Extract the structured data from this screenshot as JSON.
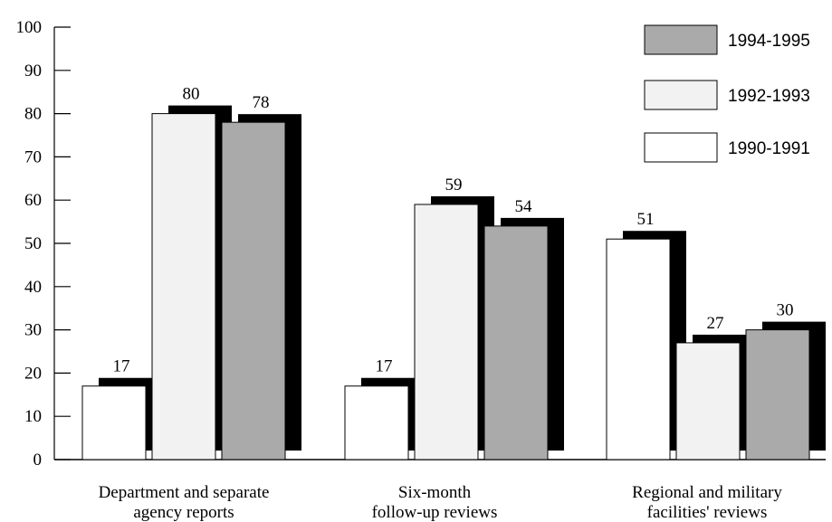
{
  "chart_data": {
    "type": "bar",
    "title": "",
    "xlabel": "",
    "ylabel": "",
    "ylim": [
      0,
      100
    ],
    "yticks": [
      0,
      10,
      20,
      30,
      40,
      50,
      60,
      70,
      80,
      90,
      100
    ],
    "categories": [
      [
        "Department and separate",
        "agency reports"
      ],
      [
        "Six-month",
        "follow-up reviews"
      ],
      [
        "Regional and military",
        "facilities' reviews"
      ]
    ],
    "series": [
      {
        "name": "1990-1991",
        "color": "#ffffff",
        "values": [
          17,
          17,
          51
        ]
      },
      {
        "name": "1992-1993",
        "color": "#f2f2f2",
        "values": [
          80,
          59,
          27
        ]
      },
      {
        "name": "1994-1995",
        "color": "#aaaaaa",
        "values": [
          78,
          54,
          30
        ]
      }
    ],
    "legend_order": [
      "1994-1995",
      "1992-1993",
      "1990-1991"
    ],
    "legend_position": "top-right",
    "grid": false,
    "shadow_color": "#000000"
  }
}
